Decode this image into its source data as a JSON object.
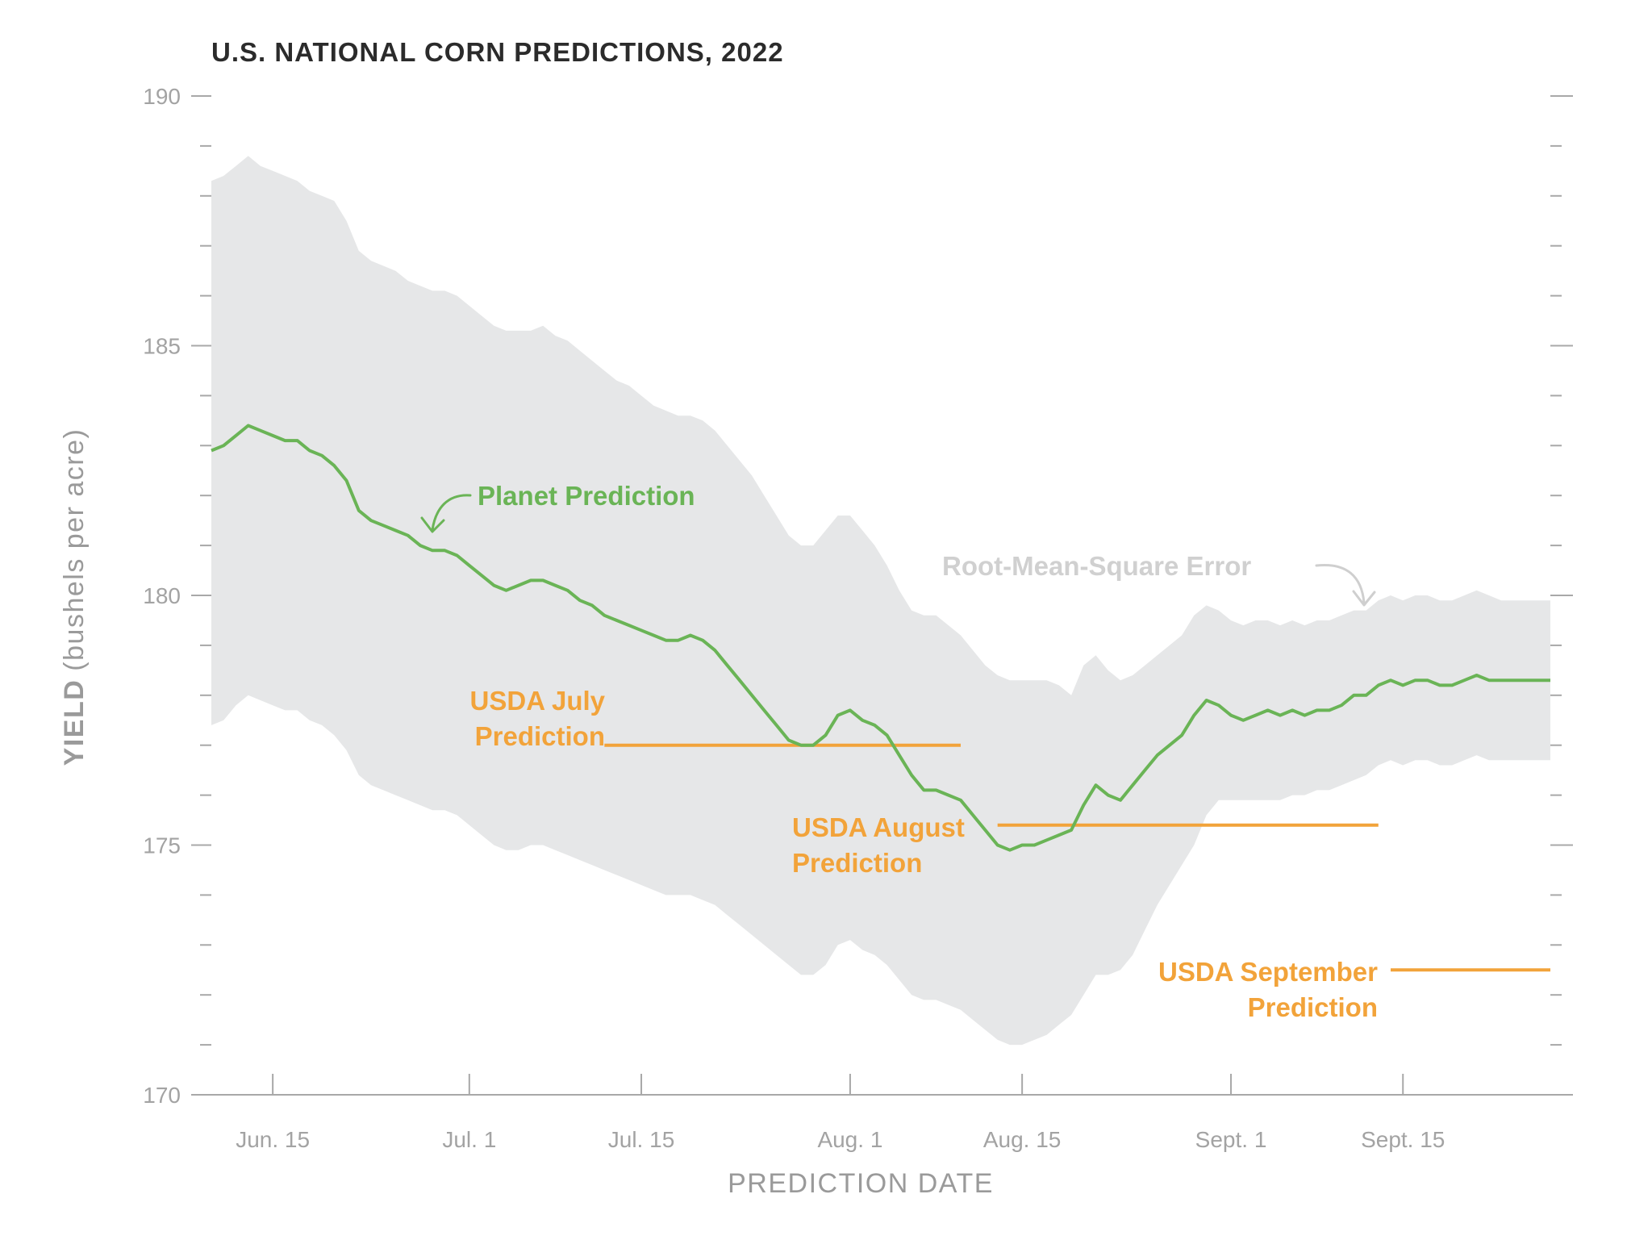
{
  "chart_data": {
    "type": "line",
    "title": "U.S. NATIONAL CORN PREDICTIONS, 2022",
    "xlabel": "PREDICTION DATE",
    "ylabel_bold": "YIELD",
    "ylabel_unit": "(bushels per acre)",
    "x_domain_days": [
      -5,
      104
    ],
    "ylim": [
      170,
      190
    ],
    "y_ticks": [
      170,
      175,
      180,
      185,
      190
    ],
    "y_tick_labels": [
      "170",
      "175",
      "180",
      "185",
      "190"
    ],
    "x_ticks": [
      {
        "day": 0,
        "label": "Jun. 15"
      },
      {
        "day": 16,
        "label": "Jul. 1"
      },
      {
        "day": 30,
        "label": "Jul. 15"
      },
      {
        "day": 47,
        "label": "Aug. 1"
      },
      {
        "day": 61,
        "label": "Aug. 15"
      },
      {
        "day": 78,
        "label": "Sept. 1"
      },
      {
        "day": 92,
        "label": "Sept. 15"
      }
    ],
    "series": [
      {
        "name": "Planet Prediction",
        "color": "#6ab456",
        "x": [
          -5,
          -4,
          -3,
          -2,
          -1,
          0,
          1,
          2,
          3,
          4,
          5,
          6,
          7,
          8,
          9,
          10,
          11,
          12,
          13,
          14,
          15,
          16,
          17,
          18,
          19,
          20,
          21,
          22,
          23,
          24,
          25,
          26,
          27,
          28,
          29,
          30,
          31,
          32,
          33,
          34,
          35,
          36,
          37,
          38,
          39,
          40,
          41,
          42,
          43,
          44,
          45,
          46,
          47,
          48,
          49,
          50,
          51,
          52,
          53,
          54,
          55,
          56,
          57,
          58,
          59,
          60,
          61,
          62,
          63,
          64,
          65,
          66,
          67,
          68,
          69,
          70,
          71,
          72,
          73,
          74,
          75,
          76,
          77,
          78,
          79,
          80,
          81,
          82,
          83,
          84,
          85,
          86,
          87,
          88,
          89,
          90,
          91,
          92,
          93,
          94,
          95,
          96,
          97,
          98,
          99,
          100,
          101,
          102,
          103,
          104
        ],
        "values": [
          182.9,
          183.0,
          183.2,
          183.4,
          183.3,
          183.2,
          183.1,
          183.1,
          182.9,
          182.8,
          182.6,
          182.3,
          181.7,
          181.5,
          181.4,
          181.3,
          181.2,
          181.0,
          180.9,
          180.9,
          180.8,
          180.6,
          180.4,
          180.2,
          180.1,
          180.2,
          180.3,
          180.3,
          180.2,
          180.1,
          179.9,
          179.8,
          179.6,
          179.5,
          179.4,
          179.3,
          179.2,
          179.1,
          179.1,
          179.2,
          179.1,
          178.9,
          178.6,
          178.3,
          178.0,
          177.7,
          177.4,
          177.1,
          177.0,
          177.0,
          177.2,
          177.6,
          177.7,
          177.5,
          177.4,
          177.2,
          176.8,
          176.4,
          176.1,
          176.1,
          176.0,
          175.9,
          175.6,
          175.3,
          175.0,
          174.9,
          175.0,
          175.0,
          175.1,
          175.2,
          175.3,
          175.8,
          176.2,
          176.0,
          175.9,
          176.2,
          176.5,
          176.8,
          177.0,
          177.2,
          177.6,
          177.9,
          177.8,
          177.6,
          177.5,
          177.6,
          177.7,
          177.6,
          177.7,
          177.6,
          177.7,
          177.7,
          177.8,
          178.0,
          178.0,
          178.2,
          178.3,
          178.2,
          178.3,
          178.3,
          178.2,
          178.2,
          178.3,
          178.4,
          178.3,
          178.3,
          178.3,
          178.3,
          178.3,
          178.3
        ]
      }
    ],
    "rmse_band": {
      "name": "Root-Mean-Square Error",
      "color": "#e6e7e8",
      "upper": [
        188.3,
        188.4,
        188.6,
        188.8,
        188.6,
        188.5,
        188.4,
        188.3,
        188.1,
        188.0,
        187.9,
        187.5,
        186.9,
        186.7,
        186.6,
        186.5,
        186.3,
        186.2,
        186.1,
        186.1,
        186.0,
        185.8,
        185.6,
        185.4,
        185.3,
        185.3,
        185.3,
        185.4,
        185.2,
        185.1,
        184.9,
        184.7,
        184.5,
        184.3,
        184.2,
        184.0,
        183.8,
        183.7,
        183.6,
        183.6,
        183.5,
        183.3,
        183.0,
        182.7,
        182.4,
        182.0,
        181.6,
        181.2,
        181.0,
        181.0,
        181.3,
        181.6,
        181.6,
        181.3,
        181.0,
        180.6,
        180.1,
        179.7,
        179.6,
        179.6,
        179.4,
        179.2,
        178.9,
        178.6,
        178.4,
        178.3,
        178.3,
        178.3,
        178.3,
        178.2,
        178.0,
        178.6,
        178.8,
        178.5,
        178.3,
        178.4,
        178.6,
        178.8,
        179.0,
        179.2,
        179.6,
        179.8,
        179.7,
        179.5,
        179.4,
        179.5,
        179.5,
        179.4,
        179.5,
        179.4,
        179.5,
        179.5,
        179.6,
        179.7,
        179.7,
        179.9,
        180.0,
        179.9,
        180.0,
        180.0,
        179.9,
        179.9,
        180.0,
        180.1,
        180.0,
        179.9,
        179.9,
        179.9,
        179.9,
        179.9
      ],
      "lower": [
        177.4,
        177.5,
        177.8,
        178.0,
        177.9,
        177.8,
        177.7,
        177.7,
        177.5,
        177.4,
        177.2,
        176.9,
        176.4,
        176.2,
        176.1,
        176.0,
        175.9,
        175.8,
        175.7,
        175.7,
        175.6,
        175.4,
        175.2,
        175.0,
        174.9,
        174.9,
        175.0,
        175.0,
        174.9,
        174.8,
        174.7,
        174.6,
        174.5,
        174.4,
        174.3,
        174.2,
        174.1,
        174.0,
        174.0,
        174.0,
        173.9,
        173.8,
        173.6,
        173.4,
        173.2,
        173.0,
        172.8,
        172.6,
        172.4,
        172.4,
        172.6,
        173.0,
        173.1,
        172.9,
        172.8,
        172.6,
        172.3,
        172.0,
        171.9,
        171.9,
        171.8,
        171.7,
        171.5,
        171.3,
        171.1,
        171.0,
        171.0,
        171.1,
        171.2,
        171.4,
        171.6,
        172.0,
        172.4,
        172.4,
        172.5,
        172.8,
        173.3,
        173.8,
        174.2,
        174.6,
        175.0,
        175.6,
        175.9,
        175.9,
        175.9,
        175.9,
        175.9,
        175.9,
        176.0,
        176.0,
        176.1,
        176.1,
        176.2,
        176.3,
        176.4,
        176.6,
        176.7,
        176.6,
        176.7,
        176.7,
        176.6,
        176.6,
        176.7,
        176.8,
        176.7,
        176.7,
        176.7,
        176.7,
        176.7,
        176.7
      ]
    },
    "reference_lines": [
      {
        "name": "USDA July Prediction",
        "label_line1": "USDA July",
        "label_line2": "Prediction",
        "value": 177.0,
        "x_start": 27,
        "x_end": 56,
        "color": "#f2a33a"
      },
      {
        "name": "USDA August Prediction",
        "label_line1": "USDA August",
        "label_line2": "Prediction",
        "value": 175.4,
        "x_start": 59,
        "x_end": 90,
        "color": "#f2a33a"
      },
      {
        "name": "USDA September Prediction",
        "label_line1": "USDA September",
        "label_line2": "Prediction",
        "value": 172.5,
        "x_start": 91,
        "x_end": 104,
        "color": "#f2a33a"
      }
    ],
    "annotations": {
      "planet_label": "Planet Prediction",
      "rmse_label": "Root-Mean-Square Error"
    }
  }
}
